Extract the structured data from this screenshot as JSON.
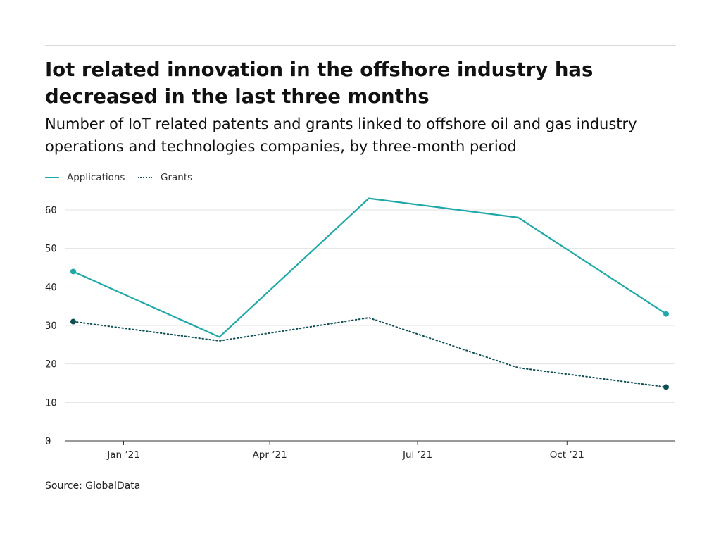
{
  "header": {
    "title": "Iot related innovation in the offshore industry has decreased in the last three months",
    "subtitle": "Number of IoT related patents and grants linked to offshore oil and gas industry operations and technologies companies, by three-month period"
  },
  "legend": {
    "position": "top-left",
    "items": [
      {
        "label": "Applications",
        "style": "solid",
        "color": "#20a8a8"
      },
      {
        "label": "Grants",
        "style": "dotted",
        "color": "#0d4f55"
      }
    ]
  },
  "footer": {
    "source": "Source: GlobalData"
  },
  "chart_data": {
    "type": "line",
    "title": "Iot related innovation in the offshore industry has decreased in the last three months",
    "subtitle": "Number of IoT related patents and grants linked to offshore oil and gas industry operations and technologies companies, by three-month period",
    "x": [
      "2020-12-01",
      "2021-03-01",
      "2021-06-01",
      "2021-09-01",
      "2021-12-01"
    ],
    "x_ticks": [
      {
        "date": "2021-01-01",
        "label": "Jan ’21"
      },
      {
        "date": "2021-04-01",
        "label": "Apr ’21"
      },
      {
        "date": "2021-07-01",
        "label": "Jul ’21"
      },
      {
        "date": "2021-10-01",
        "label": "Oct ’21"
      }
    ],
    "series": [
      {
        "name": "Applications",
        "values": [
          44,
          27,
          63,
          58,
          33
        ],
        "color": "#20a8a8",
        "line_style": "solid"
      },
      {
        "name": "Grants",
        "values": [
          31,
          26,
          32,
          19,
          14
        ],
        "color": "#0d4f55",
        "line_style": "dotted"
      }
    ],
    "ylim": [
      0,
      60
    ],
    "y_ticks": [
      0,
      10,
      20,
      30,
      40,
      50,
      60
    ],
    "grid": true,
    "xlabel": "",
    "ylabel": "",
    "endpoint_markers": true
  }
}
